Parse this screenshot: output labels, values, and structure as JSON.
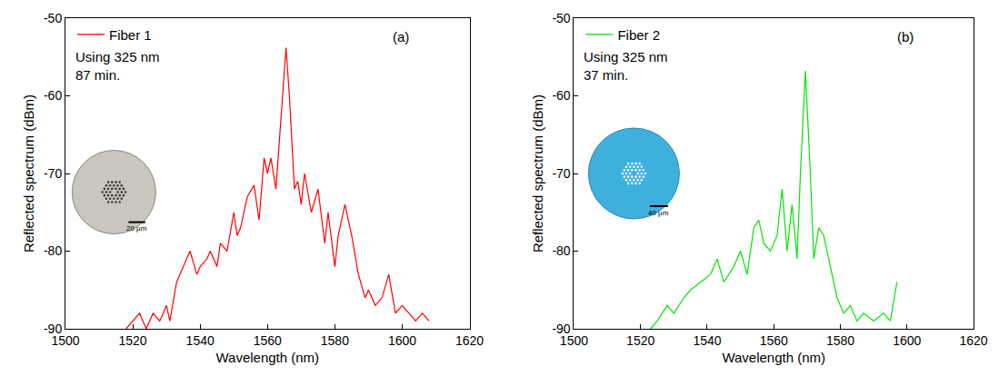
{
  "chart_data": [
    {
      "type": "line",
      "panel_label": "(a)",
      "annotations": [
        "Using 325 nm",
        "87 min."
      ],
      "inset_scale_label": "20 µm",
      "x_label": "Wavelength (nm)",
      "y_label": "Reflected spectrum (dBm)",
      "xlim": [
        1500,
        1620
      ],
      "xticks": [
        1500,
        1520,
        1540,
        1560,
        1580,
        1600,
        1620
      ],
      "ylim": [
        -90,
        -50
      ],
      "yticks": [
        -90,
        -80,
        -70,
        -60,
        -50
      ],
      "grid": false,
      "legend": "top left",
      "x": [
        1518,
        1520,
        1522,
        1524,
        1526,
        1528,
        1530,
        1531,
        1533,
        1535,
        1537,
        1539,
        1540,
        1542,
        1543,
        1545,
        1546,
        1548,
        1550,
        1551,
        1552,
        1554,
        1556,
        1557.5,
        1559,
        1560,
        1561,
        1562.5,
        1563.5,
        1564.5,
        1565.5,
        1566.5,
        1567.5,
        1568,
        1569,
        1570,
        1571,
        1573,
        1575,
        1577,
        1578,
        1580,
        1581,
        1583,
        1585,
        1587,
        1589,
        1590,
        1592,
        1594,
        1596,
        1598,
        1600,
        1602,
        1604,
        1606,
        1608
      ],
      "series": [
        {
          "name": "Fiber 1",
          "color": "#ff0000",
          "values": [
            -90,
            -89,
            -88,
            -90,
            -88,
            -89,
            -87,
            -89,
            -84,
            -82,
            -80,
            -83,
            -82,
            -81,
            -80,
            -82,
            -79,
            -80,
            -75,
            -78,
            -77,
            -73,
            -71.5,
            -76,
            -68,
            -70,
            -68,
            -72,
            -66,
            -60,
            -53.8,
            -60,
            -68,
            -72,
            -71,
            -74,
            -70,
            -75,
            -72,
            -79,
            -75,
            -82,
            -78,
            -74,
            -78,
            -83,
            -86,
            -85,
            -87,
            -86,
            -83,
            -88,
            -87,
            -88,
            -89,
            -88,
            -89
          ]
        }
      ]
    },
    {
      "type": "line",
      "panel_label": "(b)",
      "annotations": [
        "Using 325 nm",
        "37 min."
      ],
      "inset_scale_label": "40 µm",
      "x_label": "Wavelength (nm)",
      "y_label": "Reflected spectrum (dBm)",
      "xlim": [
        1500,
        1620
      ],
      "xticks": [
        1500,
        1520,
        1540,
        1560,
        1580,
        1600,
        1620
      ],
      "ylim": [
        -90,
        -50
      ],
      "yticks": [
        -90,
        -80,
        -70,
        -60,
        -50
      ],
      "grid": false,
      "legend": "top left",
      "x": [
        1523,
        1525,
        1528,
        1530,
        1533,
        1535,
        1538,
        1541,
        1543,
        1545,
        1548,
        1550,
        1552,
        1554,
        1555.5,
        1557,
        1559,
        1561,
        1562.5,
        1564,
        1565.5,
        1567,
        1568,
        1569.5,
        1571,
        1572,
        1573.5,
        1575,
        1577,
        1579,
        1581,
        1583,
        1585,
        1587,
        1590,
        1593,
        1595,
        1597
      ],
      "series": [
        {
          "name": "Fiber 2",
          "color": "#00e600",
          "values": [
            -90,
            -89,
            -87,
            -88,
            -86,
            -85,
            -84,
            -83,
            -81,
            -84,
            -82,
            -80,
            -83,
            -77,
            -76,
            -79,
            -80,
            -78,
            -72,
            -80,
            -74,
            -81,
            -70,
            -56.8,
            -70,
            -81,
            -77,
            -78,
            -82,
            -86,
            -88,
            -87,
            -89,
            -88,
            -89,
            -88,
            -89,
            -84
          ]
        }
      ]
    }
  ]
}
